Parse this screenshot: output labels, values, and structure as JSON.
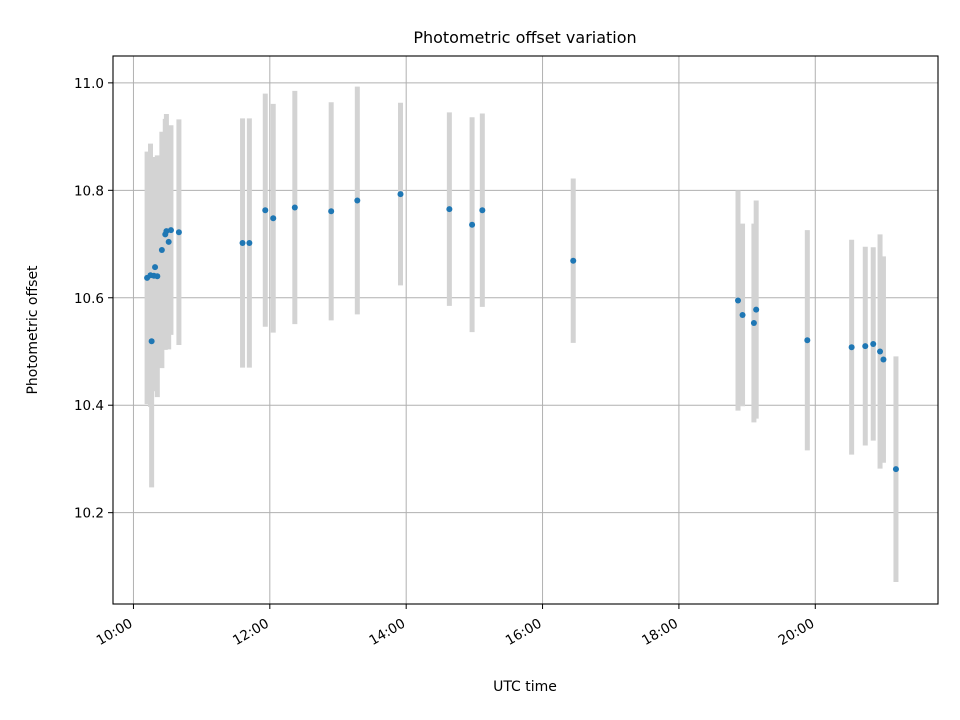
{
  "chart_data": {
    "type": "scatter",
    "title": "Photometric offset variation",
    "xlabel": "UTC time",
    "ylabel": "Photometric offset",
    "grid": true,
    "xlim": [
      "09:42",
      "21:48"
    ],
    "ylim": [
      10.03,
      11.05
    ],
    "x_ticks": [
      "10:00",
      "12:00",
      "14:00",
      "16:00",
      "18:00",
      "20:00"
    ],
    "y_ticks": [
      10.2,
      10.4,
      10.6,
      10.8,
      11.0
    ],
    "y_tick_labels": [
      "10.2",
      "10.4",
      "10.6",
      "10.8",
      "11.0"
    ],
    "point_color": "#1f77b4",
    "errorbar_color": "#d3d3d3",
    "points": [
      {
        "x": "10:12",
        "y": 10.637,
        "err": 0.235
      },
      {
        "x": "10:15",
        "y": 10.642,
        "err": 0.245
      },
      {
        "x": "10:16",
        "y": 10.519,
        "err": 0.272
      },
      {
        "x": "10:18",
        "y": 10.641,
        "err": 0.215
      },
      {
        "x": "10:19",
        "y": 10.657,
        "err": 0.205
      },
      {
        "x": "10:21",
        "y": 10.64,
        "err": 0.225
      },
      {
        "x": "10:25",
        "y": 10.689,
        "err": 0.22
      },
      {
        "x": "10:28",
        "y": 10.718,
        "err": 0.215
      },
      {
        "x": "10:29",
        "y": 10.724,
        "err": 0.218
      },
      {
        "x": "10:31",
        "y": 10.704,
        "err": 0.2
      },
      {
        "x": "10:33",
        "y": 10.726,
        "err": 0.195
      },
      {
        "x": "10:40",
        "y": 10.722,
        "err": 0.21
      },
      {
        "x": "11:36",
        "y": 10.702,
        "err": 0.232
      },
      {
        "x": "11:42",
        "y": 10.702,
        "err": 0.232
      },
      {
        "x": "11:56",
        "y": 10.763,
        "err": 0.217
      },
      {
        "x": "12:03",
        "y": 10.748,
        "err": 0.213
      },
      {
        "x": "12:22",
        "y": 10.768,
        "err": 0.217
      },
      {
        "x": "12:54",
        "y": 10.761,
        "err": 0.203
      },
      {
        "x": "13:17",
        "y": 10.781,
        "err": 0.212
      },
      {
        "x": "13:55",
        "y": 10.793,
        "err": 0.17
      },
      {
        "x": "14:38",
        "y": 10.765,
        "err": 0.18
      },
      {
        "x": "14:58",
        "y": 10.736,
        "err": 0.2
      },
      {
        "x": "15:07",
        "y": 10.763,
        "err": 0.18
      },
      {
        "x": "16:27",
        "y": 10.669,
        "err": 0.153
      },
      {
        "x": "18:52",
        "y": 10.595,
        "err": 0.205
      },
      {
        "x": "18:56",
        "y": 10.568,
        "err": 0.17
      },
      {
        "x": "19:06",
        "y": 10.553,
        "err": 0.185
      },
      {
        "x": "19:08",
        "y": 10.578,
        "err": 0.203
      },
      {
        "x": "19:53",
        "y": 10.521,
        "err": 0.205
      },
      {
        "x": "20:32",
        "y": 10.508,
        "err": 0.2
      },
      {
        "x": "20:44",
        "y": 10.51,
        "err": 0.185
      },
      {
        "x": "20:51",
        "y": 10.514,
        "err": 0.18
      },
      {
        "x": "20:57",
        "y": 10.5,
        "err": 0.218
      },
      {
        "x": "21:00",
        "y": 10.485,
        "err": 0.192
      },
      {
        "x": "21:11",
        "y": 10.281,
        "err": 0.21
      }
    ]
  }
}
